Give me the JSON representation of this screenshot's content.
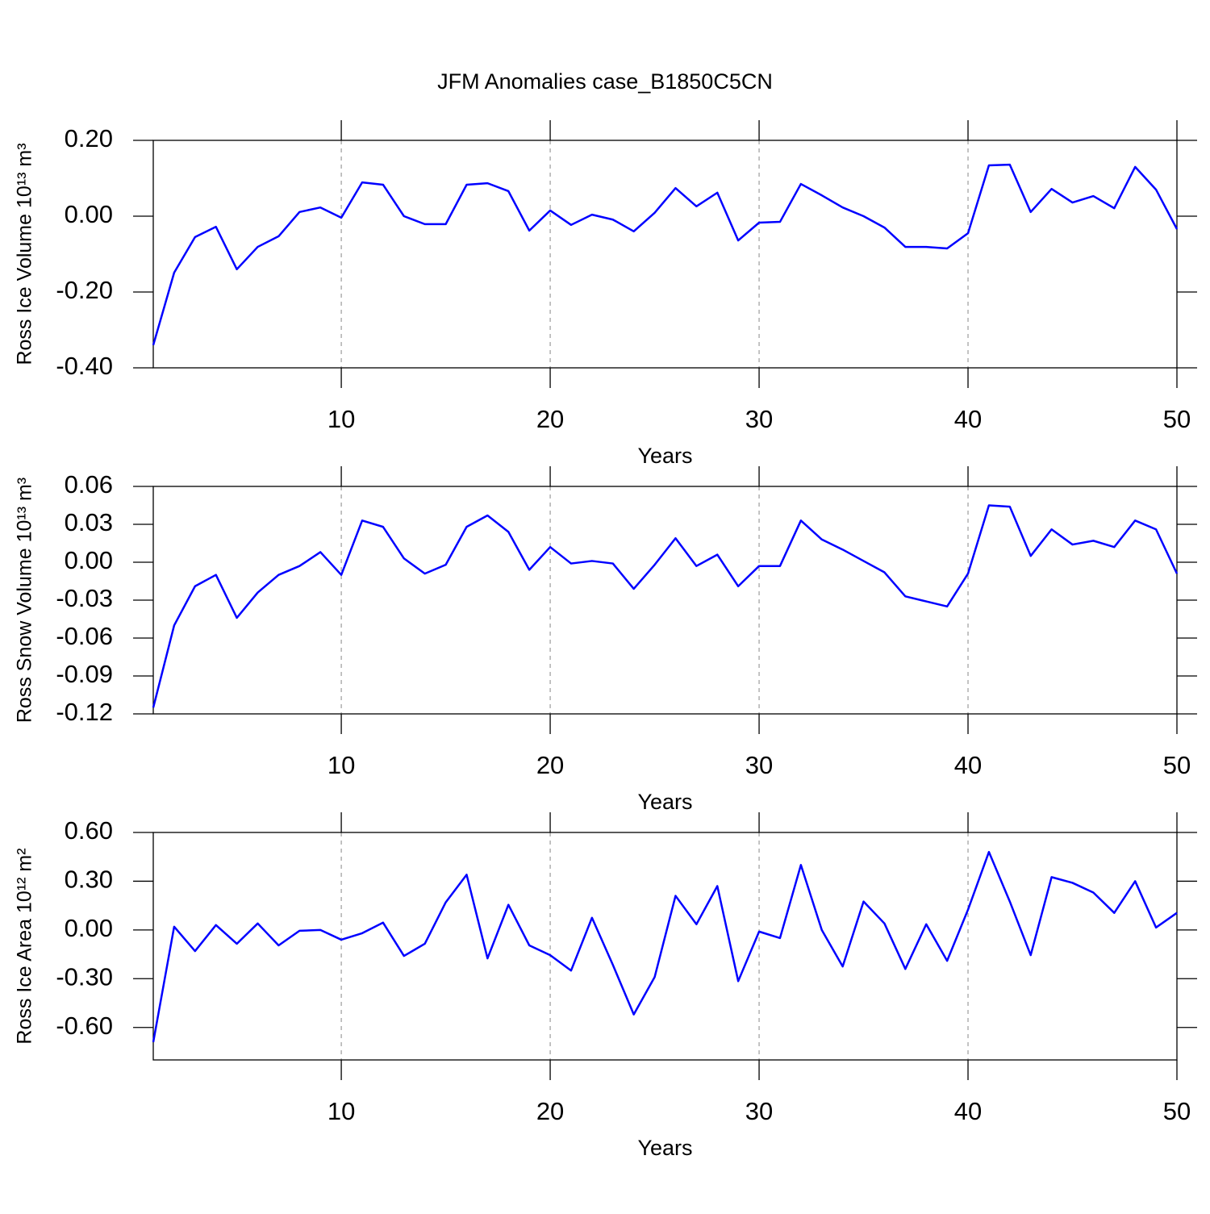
{
  "title": "JFM Anomalies case_B1850C5CN",
  "chart_data": [
    {
      "type": "line",
      "ylabel": "Ross Ice Volume 10¹³ m³",
      "xlabel": "Years",
      "x": [
        1,
        2,
        3,
        4,
        5,
        6,
        7,
        8,
        9,
        10,
        11,
        12,
        13,
        14,
        15,
        16,
        17,
        18,
        19,
        20,
        21,
        22,
        23,
        24,
        25,
        26,
        27,
        28,
        29,
        30,
        31,
        32,
        33,
        34,
        35,
        36,
        37,
        38,
        39,
        40,
        41,
        42,
        43,
        44,
        45,
        46,
        47,
        48,
        49,
        50
      ],
      "values": [
        -0.34,
        -0.149,
        -0.055,
        -0.028,
        -0.14,
        -0.081,
        -0.053,
        0.011,
        0.023,
        -0.004,
        0.089,
        0.083,
        0.0,
        -0.021,
        -0.021,
        0.083,
        0.087,
        0.066,
        -0.038,
        0.015,
        -0.023,
        0.004,
        -0.009,
        -0.04,
        0.009,
        0.074,
        0.026,
        0.062,
        -0.064,
        -0.017,
        -0.015,
        0.085,
        0.055,
        0.023,
        0.0,
        -0.03,
        -0.081,
        -0.081,
        -0.085,
        -0.045,
        0.134,
        0.136,
        0.011,
        0.072,
        0.036,
        0.053,
        0.021,
        0.13,
        0.07,
        -0.034
      ],
      "color": "#0000ff",
      "xlim": [
        1,
        50
      ],
      "xticks": [
        10,
        20,
        30,
        40,
        50
      ],
      "ylim": [
        -0.4,
        0.2
      ],
      "yticks": [
        {
          "value": -0.4,
          "label": "-0.40"
        },
        {
          "value": -0.2,
          "label": "-0.20"
        },
        {
          "value": 0,
          "label": "0.00"
        },
        {
          "value": 0.2,
          "label": "0.20"
        }
      ],
      "grid": "x"
    },
    {
      "type": "line",
      "ylabel": "Ross Snow Volume 10¹³ m³",
      "xlabel": "Years",
      "x": [
        1,
        2,
        3,
        4,
        5,
        6,
        7,
        8,
        9,
        10,
        11,
        12,
        13,
        14,
        15,
        16,
        17,
        18,
        19,
        20,
        21,
        22,
        23,
        24,
        25,
        26,
        27,
        28,
        29,
        30,
        31,
        32,
        33,
        34,
        35,
        36,
        37,
        38,
        39,
        40,
        41,
        42,
        43,
        44,
        45,
        46,
        47,
        48,
        49,
        50
      ],
      "values": [
        -0.115,
        -0.05,
        -0.019,
        -0.01,
        -0.044,
        -0.024,
        -0.01,
        -0.003,
        0.008,
        -0.01,
        0.033,
        0.028,
        0.003,
        -0.009,
        -0.002,
        0.028,
        0.037,
        0.024,
        -0.006,
        0.012,
        -0.001,
        0.001,
        -0.001,
        -0.021,
        -0.002,
        0.019,
        -0.003,
        0.006,
        -0.019,
        -0.003,
        -0.003,
        0.033,
        0.018,
        0.01,
        0.001,
        -0.008,
        -0.027,
        -0.031,
        -0.035,
        -0.009,
        0.045,
        0.044,
        0.005,
        0.026,
        0.014,
        0.017,
        0.012,
        0.033,
        0.026,
        -0.009
      ],
      "color": "#0000ff",
      "xlim": [
        1,
        50
      ],
      "xticks": [
        10,
        20,
        30,
        40,
        50
      ],
      "ylim": [
        -0.12,
        0.06
      ],
      "yticks": [
        {
          "value": -0.12,
          "label": "-0.12"
        },
        {
          "value": -0.09,
          "label": "-0.09"
        },
        {
          "value": -0.06,
          "label": "-0.06"
        },
        {
          "value": -0.03,
          "label": "-0.03"
        },
        {
          "value": 0,
          "label": "0.00"
        },
        {
          "value": 0.03,
          "label": "0.03"
        },
        {
          "value": 0.06,
          "label": "0.06"
        }
      ],
      "grid": "x"
    },
    {
      "type": "line",
      "ylabel": "Ross Ice Area 10¹² m²",
      "xlabel": "Years",
      "x": [
        1,
        2,
        3,
        4,
        5,
        6,
        7,
        8,
        9,
        10,
        11,
        12,
        13,
        14,
        15,
        16,
        17,
        18,
        19,
        20,
        21,
        22,
        23,
        24,
        25,
        26,
        27,
        28,
        29,
        30,
        31,
        32,
        33,
        34,
        35,
        36,
        37,
        38,
        39,
        40,
        41,
        42,
        43,
        44,
        45,
        46,
        47,
        48,
        49,
        50
      ],
      "values": [
        -0.69,
        0.02,
        -0.13,
        0.03,
        -0.085,
        0.04,
        -0.095,
        -0.005,
        0.0,
        -0.06,
        -0.02,
        0.045,
        -0.16,
        -0.085,
        0.17,
        0.34,
        -0.175,
        0.155,
        -0.095,
        -0.155,
        -0.25,
        0.075,
        -0.215,
        -0.52,
        -0.29,
        0.21,
        0.035,
        0.27,
        -0.315,
        -0.01,
        -0.05,
        0.4,
        0.0,
        -0.225,
        0.175,
        0.04,
        -0.24,
        0.035,
        -0.19,
        0.125,
        0.48,
        0.175,
        -0.155,
        0.325,
        0.29,
        0.23,
        0.105,
        0.3,
        0.015,
        0.105
      ],
      "color": "#0000ff",
      "xlim": [
        1,
        50
      ],
      "xticks": [
        10,
        20,
        30,
        40,
        50
      ],
      "ylim": [
        -0.8,
        0.6
      ],
      "yticks": [
        {
          "value": -0.6,
          "label": "-0.60"
        },
        {
          "value": -0.3,
          "label": "-0.30"
        },
        {
          "value": 0,
          "label": "0.00"
        },
        {
          "value": 0.3,
          "label": "0.30"
        },
        {
          "value": 0.6,
          "label": "0.60"
        }
      ],
      "grid": "x"
    }
  ]
}
